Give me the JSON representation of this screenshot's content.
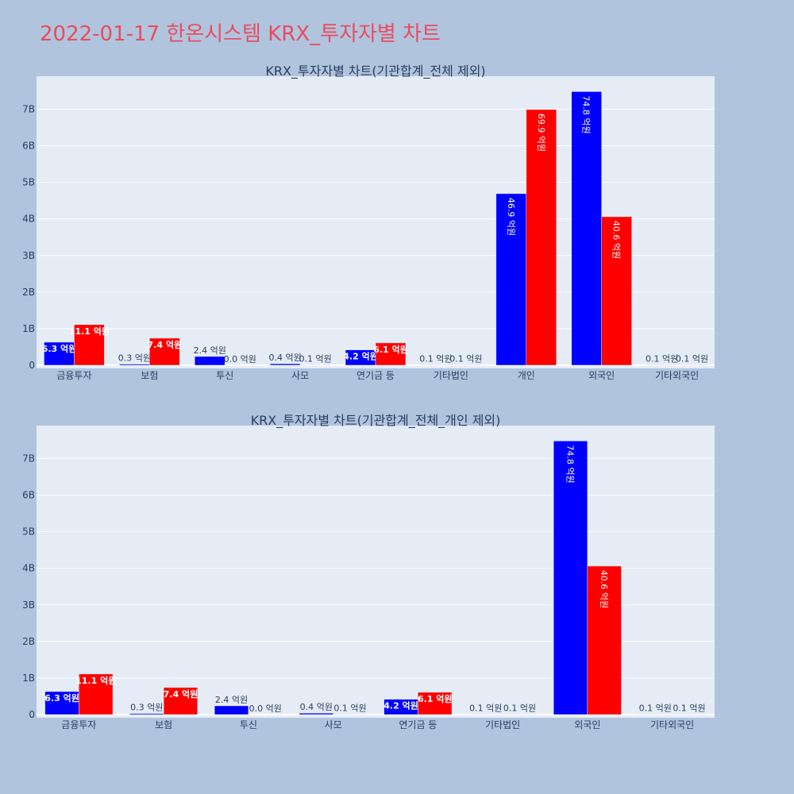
{
  "page_title": "2022-01-17 한온시스템 KRX_투자자별 차트",
  "colors": {
    "background": "#b0c4de",
    "plot_bg": "#e5ecf6",
    "title": "#ea4c5e",
    "series_a": "#0000ff",
    "series_b": "#ff0000",
    "grid": "#ffffff",
    "text": "#2a3f5f"
  },
  "chart_data": [
    {
      "type": "bar",
      "title": "KRX_투자자별 차트(기관합계_전체 제외)",
      "categories": [
        "금융투자",
        "보험",
        "투신",
        "사모",
        "연기금 등",
        "기타법인",
        "개인",
        "외국인",
        "기타외국인"
      ],
      "y_ticks": [
        "0",
        "1B",
        "2B",
        "3B",
        "4B",
        "5B",
        "6B",
        "7B"
      ],
      "ylim": [
        0,
        7900000000
      ],
      "grid": true,
      "series": [
        {
          "values": [
            630000000,
            30000000,
            240000000,
            40000000,
            420000000,
            10000000,
            4690000000,
            7480000000,
            10000000
          ],
          "labels": [
            "6.3 억원",
            "0.3 억원",
            "2.4 억원",
            "0.4 억원",
            "4.2 억원",
            "0.1 억원",
            "46.9 억원",
            "74.8 억원",
            "0.1 억원"
          ]
        },
        {
          "values": [
            1110000000,
            740000000,
            0,
            10000000,
            610000000,
            10000000,
            6990000000,
            4060000000,
            10000000
          ],
          "labels": [
            "11.1 억원",
            "7.4 억원",
            "0.0 억원",
            "0.1 억원",
            "6.1 억원",
            "0.1 억원",
            "69.9 억원",
            "40.6 억원",
            "0.1 억원"
          ]
        }
      ]
    },
    {
      "type": "bar",
      "title": "KRX_투자자별 차트(기관합계_전체_개인 제외)",
      "categories": [
        "금융투자",
        "보험",
        "투신",
        "사모",
        "연기금 등",
        "기타법인",
        "외국인",
        "기타외국인"
      ],
      "y_ticks": [
        "0",
        "1B",
        "2B",
        "3B",
        "4B",
        "5B",
        "6B",
        "7B"
      ],
      "ylim": [
        0,
        7900000000
      ],
      "grid": true,
      "series": [
        {
          "values": [
            630000000,
            30000000,
            240000000,
            40000000,
            420000000,
            10000000,
            7480000000,
            10000000
          ],
          "labels": [
            "6.3 억원",
            "0.3 억원",
            "2.4 억원",
            "0.4 억원",
            "4.2 억원",
            "0.1 억원",
            "74.8 억원",
            "0.1 억원"
          ]
        },
        {
          "values": [
            1110000000,
            740000000,
            0,
            10000000,
            610000000,
            10000000,
            4060000000,
            10000000
          ],
          "labels": [
            "11.1 억원",
            "7.4 억원",
            "0.0 억원",
            "0.1 억원",
            "6.1 억원",
            "0.1 억원",
            "40.6 억원",
            "0.1 억원"
          ]
        }
      ]
    }
  ]
}
